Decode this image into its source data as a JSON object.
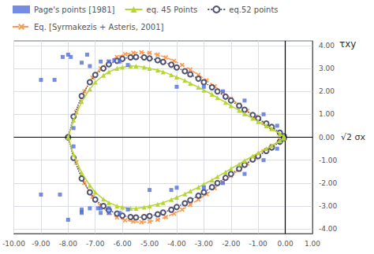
{
  "chart_data": {
    "type": "line",
    "annotations": [
      "τxy",
      "√2 σx"
    ],
    "xlim": [
      -10.0,
      1.0
    ],
    "ylim": [
      -4.2,
      4.2
    ],
    "xticks": [
      {
        "value": -10.0,
        "label": "-10.00"
      },
      {
        "value": -9.0,
        "label": "-9.00"
      },
      {
        "value": -8.0,
        "label": "-8.00"
      },
      {
        "value": -7.0,
        "label": "-7.00"
      },
      {
        "value": -6.0,
        "label": "-6.00"
      },
      {
        "value": -5.0,
        "label": "-5.00"
      },
      {
        "value": -4.0,
        "label": "-4.00"
      },
      {
        "value": -3.0,
        "label": "-3.00"
      },
      {
        "value": -2.0,
        "label": "-2.00"
      },
      {
        "value": -1.0,
        "label": "-1.00"
      },
      {
        "value": 0.0,
        "label": "0.00"
      },
      {
        "value": 1.0,
        "label": "1.00"
      }
    ],
    "yticks": [
      {
        "value": -4.0,
        "label": "-4.00"
      },
      {
        "value": -3.0,
        "label": "-3.00"
      },
      {
        "value": -2.0,
        "label": "-2.00"
      },
      {
        "value": -1.0,
        "label": "-1.00"
      },
      {
        "value": 0.0,
        "label": "0.00"
      },
      {
        "value": 1.0,
        "label": "1.00"
      },
      {
        "value": 2.0,
        "label": "2.00"
      },
      {
        "value": 3.0,
        "label": "3.00"
      },
      {
        "value": 4.0,
        "label": "4.00"
      }
    ],
    "grid": true,
    "legend": "upper left",
    "series": [
      {
        "name": "Page's points [1981]",
        "type": "scatter",
        "marker": "square",
        "x": [
          -8.0,
          -7.5,
          -7.2,
          -6.8,
          -6.5,
          -6.1,
          -5.8,
          -4.0,
          -3.0,
          -2.3,
          -1.5,
          -0.8,
          -0.3,
          -8.0,
          -7.5,
          -7.2,
          -6.8,
          -6.5,
          -6.1,
          -5.8,
          -4.0,
          -3.0,
          -2.3,
          -1.5,
          -0.8,
          -0.3,
          -8.5,
          -9.0,
          -8.3,
          -9.0,
          -7.8,
          -7.8,
          -6.8,
          -6.5,
          -7.5,
          -5.0,
          -4.2,
          -8.2,
          -7.9,
          -7.5,
          -6.9,
          -7.3,
          -6.3
        ],
        "values": [
          3.6,
          3.25,
          3.1,
          3.3,
          3.3,
          3.3,
          3.15,
          2.2,
          2.2,
          2.0,
          1.6,
          1.0,
          0.5,
          -3.6,
          -3.25,
          -3.1,
          -3.3,
          -3.3,
          -3.3,
          -3.15,
          -2.2,
          -2.2,
          -2.0,
          -1.6,
          -1.0,
          -0.5,
          2.5,
          2.5,
          -2.5,
          -2.5,
          0.4,
          -0.4,
          -3.1,
          -3.1,
          -3.15,
          -2.3,
          -2.3,
          3.5,
          3.5,
          -3.3,
          -3.1,
          3.6,
          3.35
        ]
      },
      {
        "name": "eq. 45 Points",
        "type": "line",
        "marker": "triangle",
        "line_style": "solid",
        "x": [
          -8.0,
          -7.8,
          -7.5,
          -7.2,
          -7.0,
          -6.7,
          -6.5,
          -6.2,
          -6.0,
          -5.7,
          -5.5,
          -5.2,
          -5.0,
          -4.7,
          -4.5,
          -4.2,
          -4.0,
          -3.7,
          -3.5,
          -3.2,
          -3.0,
          -2.7,
          -2.5,
          -2.2,
          -2.0,
          -1.7,
          -1.5,
          -1.2,
          -1.0,
          -0.7,
          -0.5,
          -0.2,
          -0.05,
          -0.05,
          -0.2,
          -0.5,
          -0.7,
          -1.0,
          -1.2,
          -1.5,
          -1.7,
          -2.0,
          -2.2,
          -2.5,
          -2.7,
          -3.0,
          -3.2,
          -3.5,
          -3.7,
          -4.0,
          -4.2,
          -4.5,
          -4.7,
          -5.0,
          -5.2,
          -5.5,
          -5.7,
          -6.0,
          -6.2,
          -6.5,
          -6.7,
          -7.0,
          -7.2,
          -7.5,
          -7.8,
          -8.0
        ],
        "values": [
          0.0,
          0.75,
          1.55,
          2.1,
          2.4,
          2.7,
          2.85,
          3.0,
          3.05,
          3.1,
          3.1,
          3.05,
          3.0,
          2.92,
          2.85,
          2.72,
          2.62,
          2.48,
          2.35,
          2.18,
          2.05,
          1.87,
          1.72,
          1.52,
          1.37,
          1.17,
          1.02,
          0.82,
          0.68,
          0.5,
          0.37,
          0.15,
          0.04,
          -0.04,
          -0.15,
          -0.37,
          -0.5,
          -0.68,
          -0.82,
          -1.02,
          -1.17,
          -1.37,
          -1.52,
          -1.72,
          -1.87,
          -2.05,
          -2.18,
          -2.35,
          -2.48,
          -2.62,
          -2.72,
          -2.85,
          -2.92,
          -3.0,
          -3.05,
          -3.1,
          -3.1,
          -3.05,
          -3.0,
          -2.85,
          -2.7,
          -2.4,
          -2.1,
          -1.55,
          -0.75,
          0.0
        ]
      },
      {
        "name": "eq.52 points",
        "type": "line",
        "marker": "open circle",
        "line_style": "dotted",
        "x": [
          -8.0,
          -7.8,
          -7.5,
          -7.2,
          -7.0,
          -6.7,
          -6.5,
          -6.2,
          -6.0,
          -5.7,
          -5.5,
          -5.2,
          -5.0,
          -4.7,
          -4.5,
          -4.2,
          -4.0,
          -3.7,
          -3.5,
          -3.2,
          -3.0,
          -2.7,
          -2.5,
          -2.2,
          -2.0,
          -1.7,
          -1.5,
          -1.2,
          -1.0,
          -0.7,
          -0.5,
          -0.2,
          -0.05,
          -0.05,
          -0.2,
          -0.5,
          -0.7,
          -1.0,
          -1.2,
          -1.5,
          -1.7,
          -2.0,
          -2.2,
          -2.5,
          -2.7,
          -3.0,
          -3.2,
          -3.5,
          -3.7,
          -4.0,
          -4.2,
          -4.5,
          -4.7,
          -5.0,
          -5.2,
          -5.5,
          -5.7,
          -6.0,
          -6.2,
          -6.5,
          -6.7,
          -7.0,
          -7.2,
          -7.5,
          -7.8,
          -8.0
        ],
        "values": [
          0.0,
          0.9,
          1.8,
          2.4,
          2.72,
          3.0,
          3.18,
          3.33,
          3.42,
          3.48,
          3.5,
          3.48,
          3.44,
          3.36,
          3.28,
          3.16,
          3.04,
          2.88,
          2.74,
          2.55,
          2.4,
          2.18,
          2.0,
          1.77,
          1.6,
          1.37,
          1.2,
          0.97,
          0.82,
          0.6,
          0.45,
          0.2,
          0.04,
          -0.04,
          -0.2,
          -0.45,
          -0.6,
          -0.82,
          -0.97,
          -1.2,
          -1.37,
          -1.6,
          -1.77,
          -2.0,
          -2.18,
          -2.4,
          -2.55,
          -2.74,
          -2.88,
          -3.04,
          -3.16,
          -3.28,
          -3.36,
          -3.44,
          -3.48,
          -3.5,
          -3.48,
          -3.42,
          -3.33,
          -3.18,
          -3.0,
          -2.72,
          -2.4,
          -1.8,
          -0.9,
          0.0
        ]
      },
      {
        "name": "Eq. [Syrmakezis + Asteris, 2001]",
        "type": "line",
        "marker": "x",
        "line_style": "dashed",
        "x": [
          -8.0,
          -7.7,
          -7.4,
          -7.1,
          -6.8,
          -6.5,
          -6.2,
          -5.9,
          -5.6,
          -5.3,
          -5.0,
          -4.7,
          -4.4,
          -4.1,
          -3.8,
          -3.5,
          -3.2,
          -2.9,
          -2.6,
          -2.3,
          -2.0,
          -1.7,
          -1.4,
          -1.1,
          -0.8,
          -0.5,
          -0.2,
          -0.05,
          -0.05,
          -0.2,
          -0.5,
          -0.8,
          -1.1,
          -1.4,
          -1.7,
          -2.0,
          -2.3,
          -2.6,
          -2.9,
          -3.2,
          -3.5,
          -3.8,
          -4.1,
          -4.4,
          -4.7,
          -5.0,
          -5.3,
          -5.6,
          -5.9,
          -6.2,
          -6.5,
          -6.8,
          -7.1,
          -7.4,
          -7.7,
          -8.0
        ],
        "values": [
          0.0,
          1.1,
          2.0,
          2.6,
          3.0,
          3.3,
          3.5,
          3.62,
          3.68,
          3.7,
          3.68,
          3.6,
          3.48,
          3.33,
          3.15,
          2.95,
          2.72,
          2.48,
          2.22,
          1.95,
          1.68,
          1.42,
          1.15,
          0.88,
          0.62,
          0.38,
          0.14,
          0.04,
          -0.04,
          -0.14,
          -0.38,
          -0.62,
          -0.88,
          -1.15,
          -1.42,
          -1.68,
          -1.95,
          -2.22,
          -2.48,
          -2.72,
          -2.95,
          -3.15,
          -3.33,
          -3.48,
          -3.6,
          -3.68,
          -3.7,
          -3.68,
          -3.62,
          -3.5,
          -3.3,
          -3.0,
          -2.6,
          -2.0,
          -1.1,
          0.0
        ]
      }
    ]
  }
}
